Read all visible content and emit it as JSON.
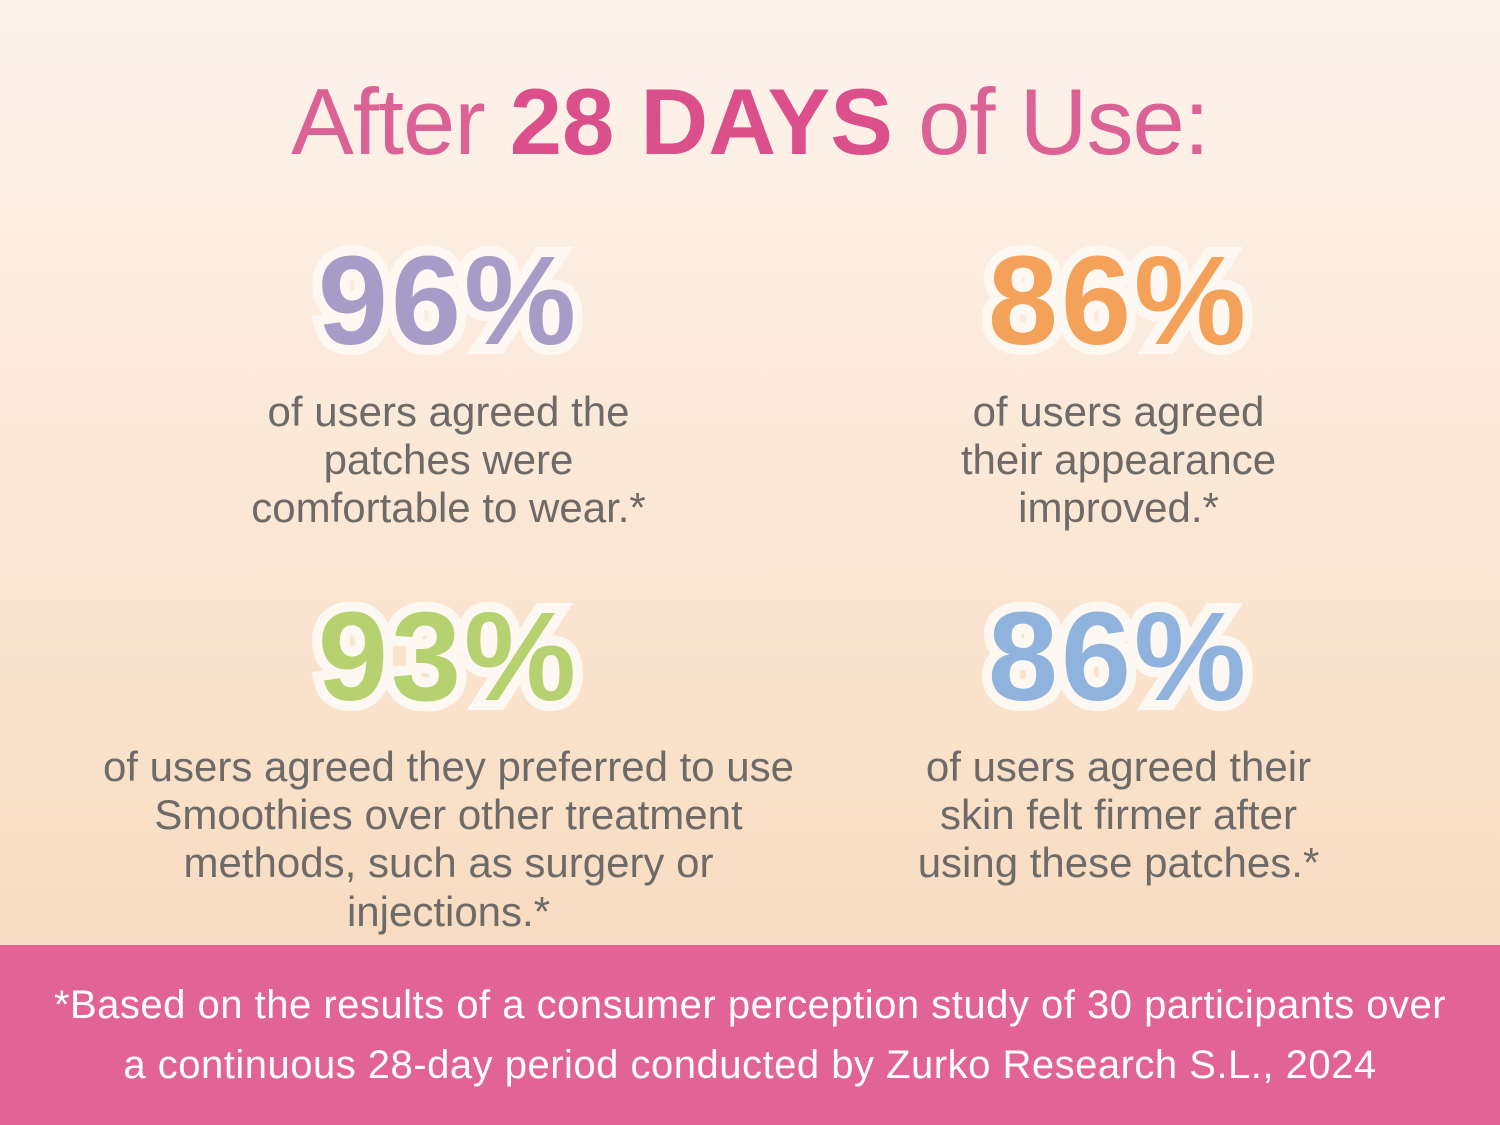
{
  "title": {
    "prefix": "After ",
    "highlight": "28 DAYS",
    "suffix": " of Use:"
  },
  "stats": [
    {
      "value": "96%",
      "color": "#a79bc8",
      "lines": [
        "of users agreed the",
        "patches were",
        "comfortable to wear.*"
      ]
    },
    {
      "value": "86%",
      "color": "#f4a259",
      "lines": [
        "of users agreed",
        "their appearance",
        "improved.*"
      ]
    },
    {
      "value": "93%",
      "color": "#b5d170",
      "lines": [
        "of users agreed they preferred to use",
        "Smoothies over other treatment",
        "methods, such as surgery or injections.*"
      ]
    },
    {
      "value": "86%",
      "color": "#90b3de",
      "lines": [
        "of users agreed their",
        "skin felt firmer after",
        "using these patches.*"
      ]
    }
  ],
  "footnote": {
    "lines": [
      "*Based on the results of a consumer perception study of 30 participants over",
      "a continuous 28-day period conducted by Zurko Research S.L., 2024"
    ]
  },
  "colors": {
    "title_pink": "#da6294",
    "title_highlight_pink": "#db4f8a",
    "banner_pink": "#e26395",
    "body_text_gray": "#6d6a68",
    "number_outline_cream": "#fdf8f1",
    "background_top": "#fdf3ed",
    "background_bottom": "#f8dbc0",
    "stat_purple": "#a79bc8",
    "stat_orange": "#f4a259",
    "stat_green": "#b5d170",
    "stat_blue": "#90b3de"
  },
  "chart_data": {
    "type": "table",
    "title": "After 28 DAYS of Use:",
    "series": [
      {
        "name": "comfortable to wear",
        "label": "of users agreed the patches were comfortable to wear.*",
        "value": 96,
        "color": "#a79bc8"
      },
      {
        "name": "appearance improved",
        "label": "of users agreed their appearance improved.*",
        "value": 86,
        "color": "#f4a259"
      },
      {
        "name": "preferred Smoothies over other treatments",
        "label": "of users agreed they preferred to use Smoothies over other treatment methods, such as surgery or injections.*",
        "value": 93,
        "color": "#b5d170"
      },
      {
        "name": "skin felt firmer",
        "label": "of users agreed their skin felt firmer after using these patches.*",
        "value": 86,
        "color": "#90b3de"
      }
    ],
    "unit": "%",
    "footnote": "*Based on the results of a consumer perception study of 30 participants over a continuous 28-day period conducted by Zurko Research S.L., 2024"
  }
}
